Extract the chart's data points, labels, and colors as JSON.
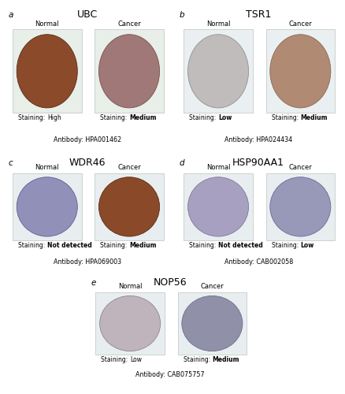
{
  "panels": [
    {
      "label": "a",
      "gene": "UBC",
      "samples": [
        {
          "type": "Normal",
          "staining": "High",
          "staining_bold": false,
          "fill": "#8B4A2A",
          "edge": "#5A2A10",
          "bg": "#E8EEE8"
        },
        {
          "type": "Cancer",
          "staining": "Medium",
          "staining_bold": true,
          "fill": "#A07878",
          "edge": "#7A5050",
          "bg": "#E8EEE8"
        }
      ],
      "antibody": "HPA001462"
    },
    {
      "label": "b",
      "gene": "TSR1",
      "samples": [
        {
          "type": "Normal",
          "staining": "Low",
          "staining_bold": true,
          "fill": "#C0BCBC",
          "edge": "#909090",
          "bg": "#EAF0F2"
        },
        {
          "type": "Cancer",
          "staining": "Medium",
          "staining_bold": true,
          "fill": "#B08A72",
          "edge": "#8A6A50",
          "bg": "#EAF0F2"
        }
      ],
      "antibody": "HPA024434"
    },
    {
      "label": "c",
      "gene": "WDR46",
      "samples": [
        {
          "type": "Normal",
          "staining": "Not detected",
          "staining_bold": true,
          "fill": "#9090B8",
          "edge": "#606090",
          "bg": "#E8EEF0"
        },
        {
          "type": "Cancer",
          "staining": "Medium",
          "staining_bold": true,
          "fill": "#8A4A2A",
          "edge": "#5A2A10",
          "bg": "#E8EEF0"
        }
      ],
      "antibody": "HPA069003"
    },
    {
      "label": "d",
      "gene": "HSP90AA1",
      "samples": [
        {
          "type": "Normal",
          "staining": "Not detected",
          "staining_bold": true,
          "fill": "#A8A0C0",
          "edge": "#807898",
          "bg": "#E8EEF0"
        },
        {
          "type": "Cancer",
          "staining": "Low",
          "staining_bold": true,
          "fill": "#9898B8",
          "edge": "#706898",
          "bg": "#E8EEF0"
        }
      ],
      "antibody": "CAB002058"
    },
    {
      "label": "e",
      "gene": "NOP56",
      "samples": [
        {
          "type": "Normal",
          "staining": "Low",
          "staining_bold": false,
          "fill": "#C0B4BC",
          "edge": "#908490",
          "bg": "#E8EEF0"
        },
        {
          "type": "Cancer",
          "staining": "Medium",
          "staining_bold": true,
          "fill": "#9090A8",
          "edge": "#707090",
          "bg": "#E8EEF0"
        }
      ],
      "antibody": "CAB075757"
    }
  ],
  "bg_color": "#FFFFFF"
}
